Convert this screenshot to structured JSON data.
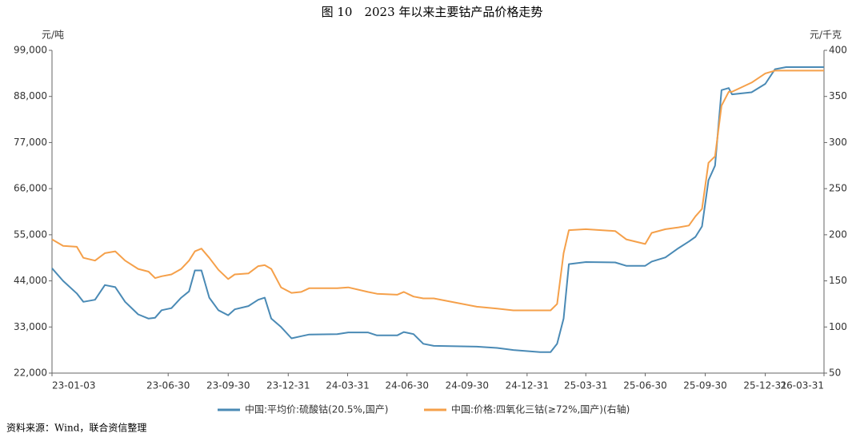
{
  "chart_data": {
    "type": "line",
    "title": "图 10　2023 年以来主要钴产品价格走势",
    "y_label": "元/吨",
    "y2_label": "元/千克",
    "source": "资料来源：Wind，联合资信整理",
    "x": [
      "23-01-03",
      "23-01-20",
      "23-02-10",
      "23-02-20",
      "23-03-10",
      "23-03-25",
      "23-04-10",
      "23-04-25",
      "23-05-15",
      "23-05-31",
      "23-06-10",
      "23-06-20",
      "23-07-05",
      "23-07-20",
      "23-08-01",
      "23-08-10",
      "23-08-20",
      "23-09-01",
      "23-09-15",
      "23-09-30",
      "23-10-10",
      "23-10-31",
      "23-11-15",
      "23-11-25",
      "23-12-05",
      "23-12-20",
      "24-01-05",
      "24-01-20",
      "24-02-01",
      "24-03-15",
      "24-04-01",
      "24-05-01",
      "24-05-15",
      "24-06-15",
      "24-06-25",
      "24-07-10",
      "24-07-25",
      "24-08-10",
      "24-10-15",
      "24-11-15",
      "24-12-10",
      "25-01-20",
      "25-02-05",
      "25-02-15",
      "25-02-25",
      "25-03-05",
      "25-03-31",
      "25-05-15",
      "25-06-01",
      "25-06-30",
      "25-07-10",
      "25-07-31",
      "25-08-20",
      "25-09-05",
      "25-09-15",
      "25-09-25",
      "25-10-05",
      "25-10-15",
      "25-10-25",
      "25-11-05",
      "25-11-10",
      "25-12-10",
      "25-12-31",
      "26-01-15",
      "26-02-01",
      "26-03-31"
    ],
    "xlim": [
      "23-01-03",
      "26-03-31"
    ],
    "xticks": [
      "23-01-03",
      "23-06-30",
      "23-09-30",
      "23-12-31",
      "24-03-31",
      "24-06-30",
      "24-09-30",
      "24-12-31",
      "25-03-31",
      "25-06-30",
      "25-09-30",
      "25-12-31",
      "26-03-31"
    ],
    "ylim": [
      22000,
      99000
    ],
    "yticks": [
      {
        "value": 22000,
        "label": "22,000"
      },
      {
        "value": 33000,
        "label": "33,000"
      },
      {
        "value": 44000,
        "label": "44,000"
      },
      {
        "value": 55000,
        "label": "55,000"
      },
      {
        "value": 66000,
        "label": "66,000"
      },
      {
        "value": 77000,
        "label": "77,000"
      },
      {
        "value": 88000,
        "label": "88,000"
      },
      {
        "value": 99000,
        "label": "99,000"
      }
    ],
    "y2lim": [
      50,
      400
    ],
    "y2ticks": [
      50,
      100,
      150,
      200,
      250,
      300,
      350,
      400
    ],
    "grid": false,
    "series": [
      {
        "name": "中国:平均价:硫酸钴(20.5%,国产)",
        "color": "#4a8ab5",
        "axis": "y",
        "values": [
          47000,
          44000,
          41000,
          39000,
          39500,
          43000,
          42500,
          39000,
          36000,
          35000,
          35200,
          37000,
          37500,
          40000,
          41500,
          46500,
          46500,
          40000,
          37000,
          35800,
          37200,
          38000,
          39500,
          40000,
          35000,
          33000,
          30300,
          30800,
          31200,
          31300,
          31700,
          31700,
          31000,
          31000,
          31800,
          31300,
          29000,
          28500,
          28300,
          28000,
          27500,
          27000,
          27000,
          29000,
          35000,
          48000,
          48500,
          48400,
          47600,
          47600,
          48600,
          49600,
          51800,
          53400,
          54500,
          57000,
          68000,
          71500,
          89500,
          90000,
          88500,
          89000,
          91000,
          94500,
          95000,
          95000
        ]
      },
      {
        "name": "中国:价格:四氧化三钴(≥72%,国产)(右轴)",
        "color": "#f5a04a",
        "axis": "y2",
        "values": [
          195,
          188,
          187,
          175,
          172,
          180,
          182,
          172,
          163,
          160,
          153,
          155,
          157,
          163,
          172,
          182,
          185,
          175,
          162,
          152,
          157,
          158,
          166,
          167,
          163,
          143,
          137,
          138,
          142,
          142,
          143,
          138,
          136,
          135,
          138,
          133,
          131,
          131,
          122,
          120,
          118,
          118,
          118,
          125,
          180,
          205,
          206,
          204,
          195,
          190,
          202,
          206,
          208,
          210,
          220,
          228,
          278,
          285,
          340,
          355,
          355,
          365,
          375,
          378,
          378,
          378
        ]
      }
    ]
  }
}
